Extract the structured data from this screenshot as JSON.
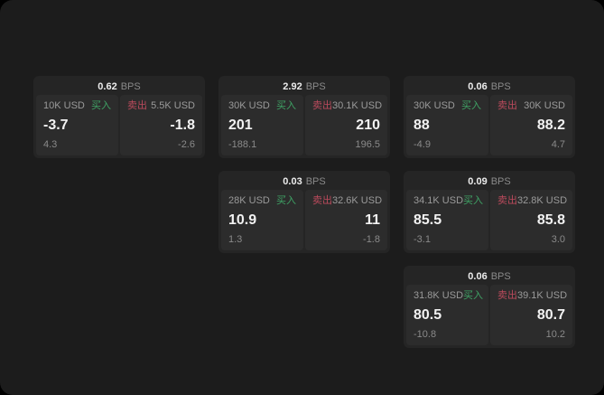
{
  "colors": {
    "outer_bg": "#000000",
    "window_bg": "#1c1c1c",
    "card_bg": "#252525",
    "panel_bg": "#2c2c2c",
    "text_primary": "#f2f2f2",
    "text_secondary": "#8a8a8a",
    "buy_green": "#3fa365",
    "sell_red": "#bb4a5c"
  },
  "labels": {
    "bps_suffix": "BPS",
    "buy": "买入",
    "sell": "卖出"
  },
  "cards": [
    {
      "grid": {
        "col": 1,
        "row": 1
      },
      "bps": "0.62",
      "buy": {
        "amount": "10K USD",
        "value": "-3.7",
        "sub": "4.3"
      },
      "sell": {
        "amount": "5.5K USD",
        "value": "-1.8",
        "sub": "-2.6"
      }
    },
    {
      "grid": {
        "col": 2,
        "row": 1
      },
      "bps": "2.92",
      "buy": {
        "amount": "30K USD",
        "value": "201",
        "sub": "-188.1"
      },
      "sell": {
        "amount": "30.1K USD",
        "value": "210",
        "sub": "196.5"
      }
    },
    {
      "grid": {
        "col": 3,
        "row": 1
      },
      "bps": "0.06",
      "buy": {
        "amount": "30K USD",
        "value": "88",
        "sub": "-4.9"
      },
      "sell": {
        "amount": "30K USD",
        "value": "88.2",
        "sub": "4.7"
      }
    },
    {
      "grid": {
        "col": 2,
        "row": 2
      },
      "bps": "0.03",
      "buy": {
        "amount": "28K USD",
        "value": "10.9",
        "sub": "1.3"
      },
      "sell": {
        "amount": "32.6K USD",
        "value": "11",
        "sub": "-1.8"
      }
    },
    {
      "grid": {
        "col": 3,
        "row": 2
      },
      "bps": "0.09",
      "buy": {
        "amount": "34.1K USD",
        "value": "85.5",
        "sub": "-3.1"
      },
      "sell": {
        "amount": "32.8K USD",
        "value": "85.8",
        "sub": "3.0"
      }
    },
    {
      "grid": {
        "col": 3,
        "row": 3
      },
      "bps": "0.06",
      "buy": {
        "amount": "31.8K USD",
        "value": "80.5",
        "sub": "-10.8"
      },
      "sell": {
        "amount": "39.1K USD",
        "value": "80.7",
        "sub": "10.2"
      }
    }
  ]
}
